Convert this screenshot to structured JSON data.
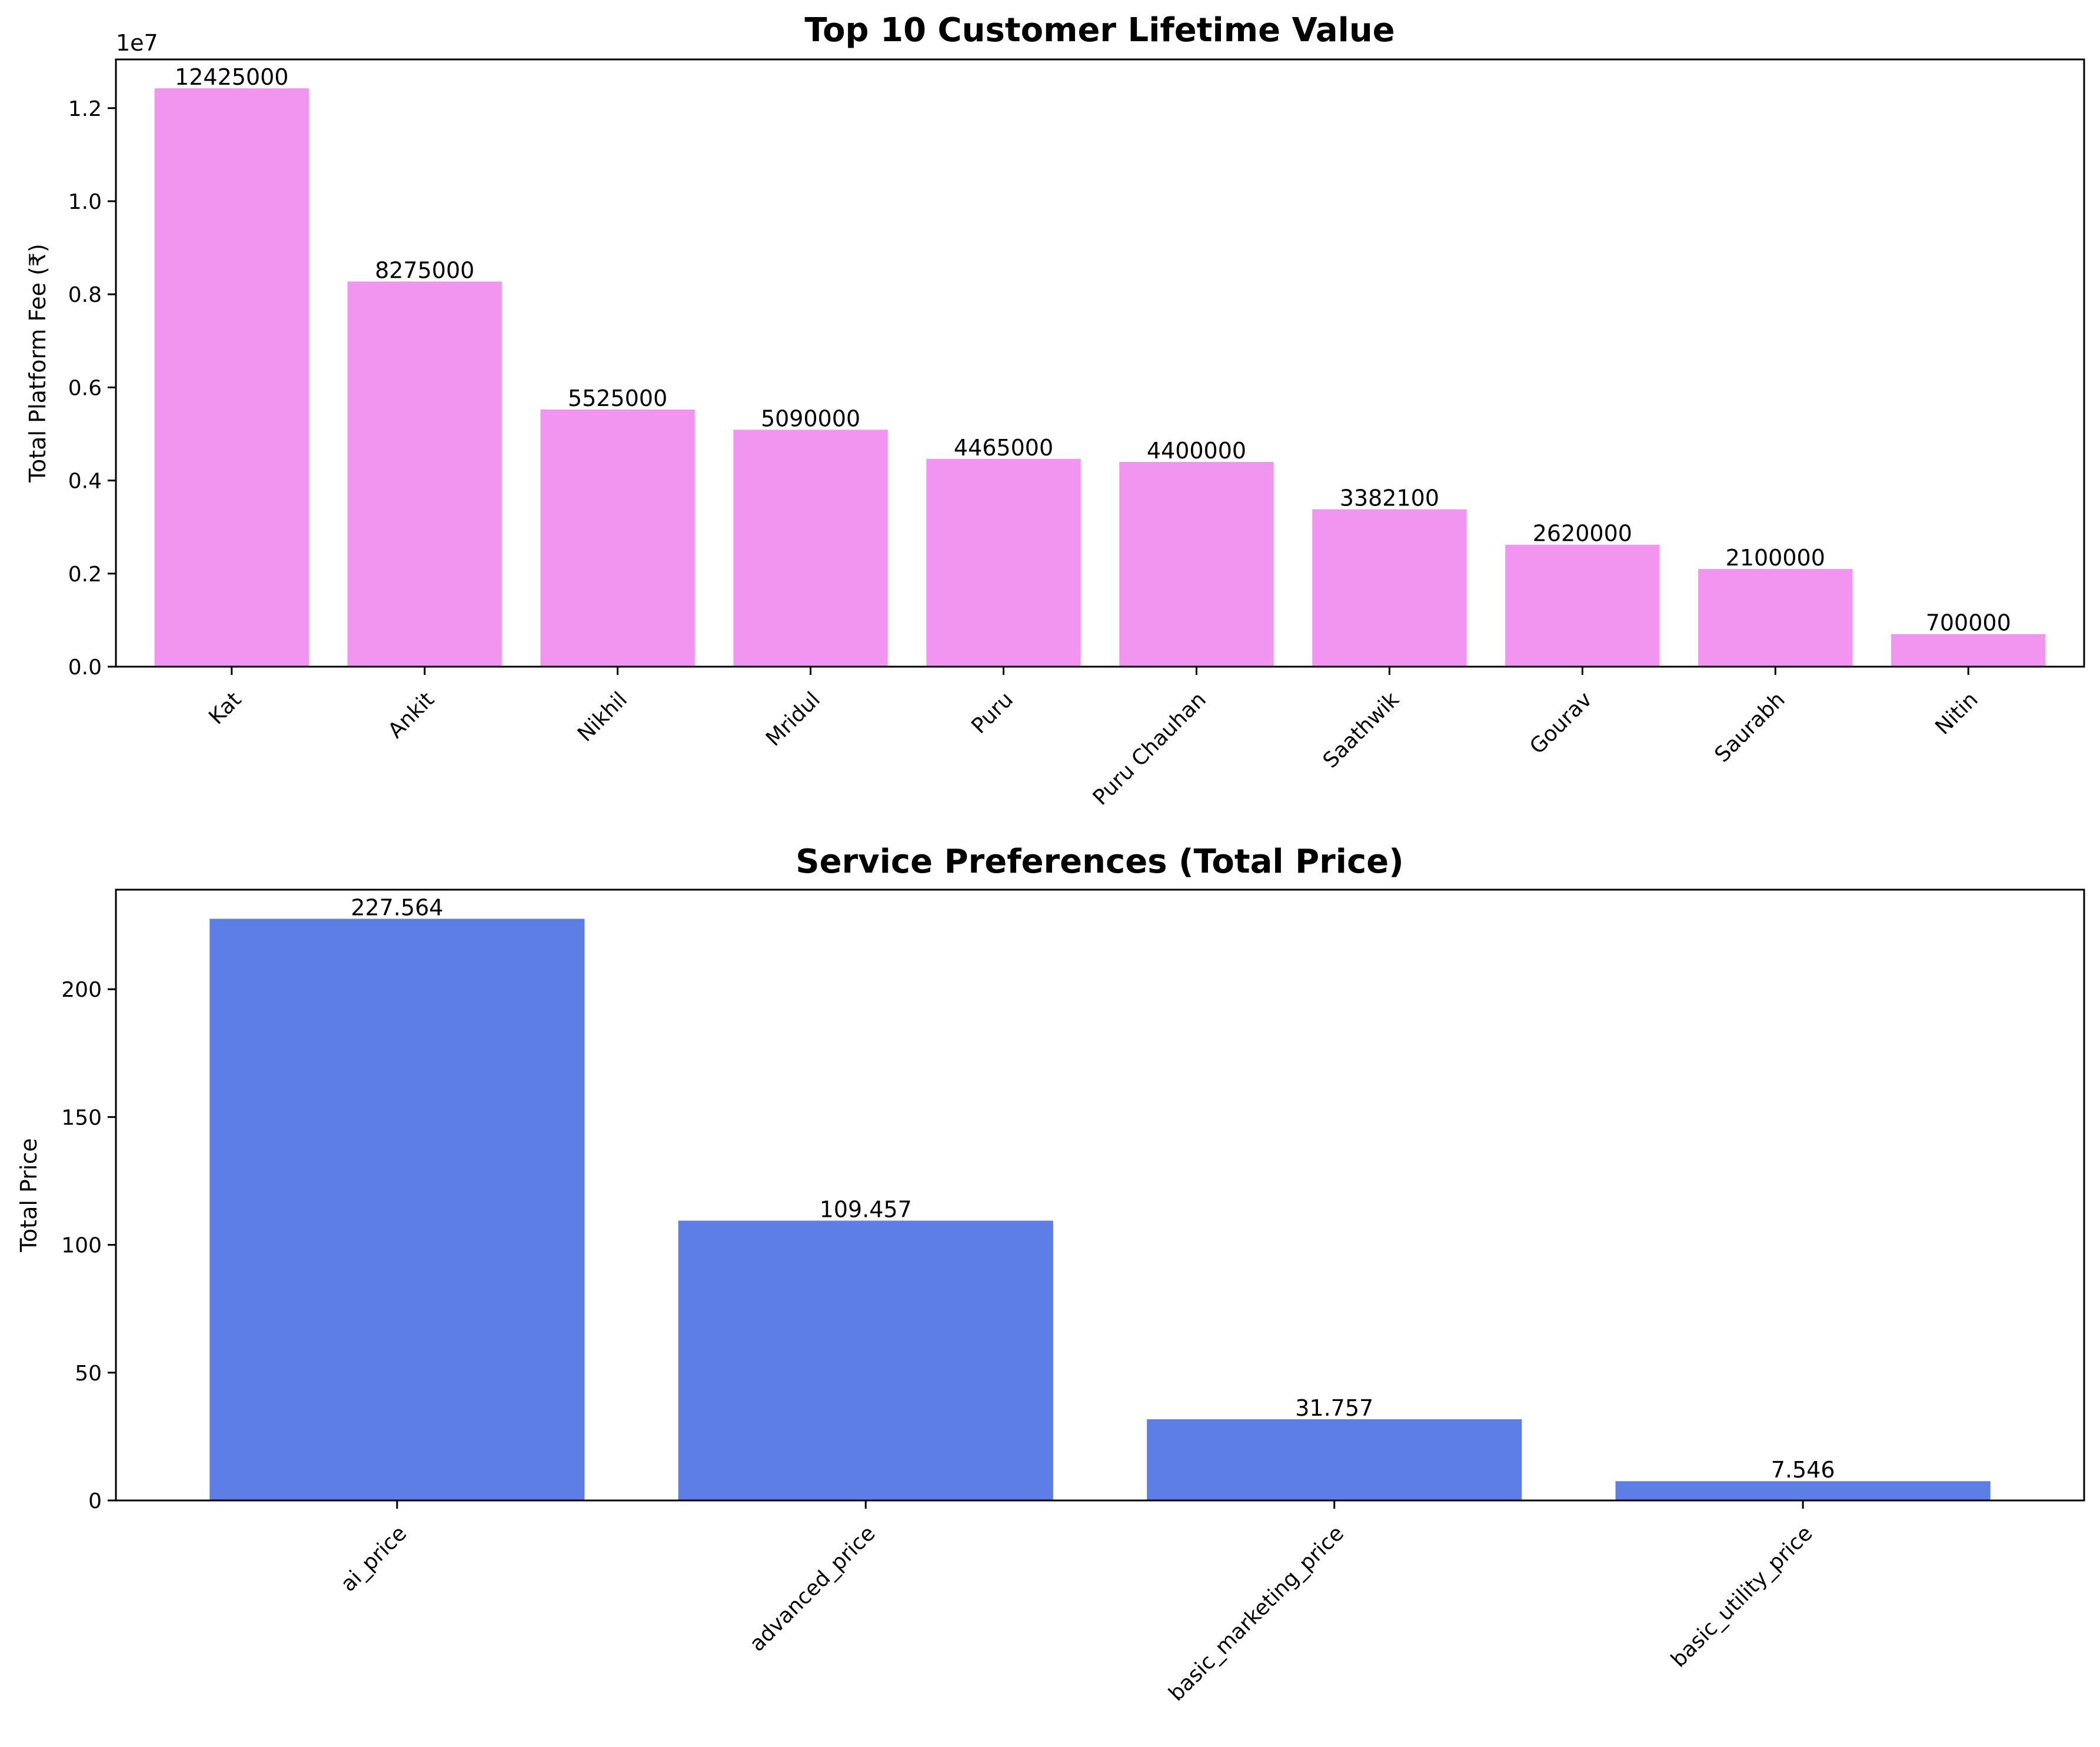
{
  "chart_data": [
    {
      "type": "bar",
      "title": "Top 10 Customer Lifetime Value",
      "xlabel": "",
      "ylabel": "Total Platform Fee (₹)",
      "offset_text": "1e7",
      "categories": [
        "Kat",
        "Ankit",
        "Nikhil",
        "Mridul",
        "Puru",
        "Puru Chauhan",
        "Saathwik",
        "Gourav",
        "Saurabh",
        "Nitin"
      ],
      "values": [
        12425000,
        8275000,
        5525000,
        5090000,
        4465000,
        4400000,
        3382100,
        2620000,
        2100000,
        700000
      ],
      "value_labels": [
        "12425000",
        "8275000",
        "5525000",
        "5090000",
        "4465000",
        "4400000",
        "3382100",
        "2620000",
        "2100000",
        "700000"
      ],
      "yticks": [
        0,
        2000000,
        4000000,
        6000000,
        8000000,
        10000000,
        12000000
      ],
      "ytick_labels": [
        "0.0",
        "0.2",
        "0.4",
        "0.6",
        "0.8",
        "1.0",
        "1.2"
      ],
      "ylim": [
        0,
        13046250
      ],
      "color": "#ee82ee",
      "grid": false,
      "legend": false
    },
    {
      "type": "bar",
      "title": "Service Preferences (Total Price)",
      "xlabel": "",
      "ylabel": "Total Price",
      "categories": [
        "ai_price",
        "advanced_price",
        "basic_marketing_price",
        "basic_utility_price"
      ],
      "values": [
        227.564,
        109.457,
        31.757,
        7.546
      ],
      "value_labels": [
        "227.564",
        "109.457",
        "31.757",
        "7.546"
      ],
      "yticks": [
        0,
        50,
        100,
        150,
        200
      ],
      "ytick_labels": [
        "0",
        "50",
        "100",
        "150",
        "200"
      ],
      "ylim": [
        0,
        238.94
      ],
      "color": "#4169e1",
      "grid": false,
      "legend": false
    }
  ]
}
